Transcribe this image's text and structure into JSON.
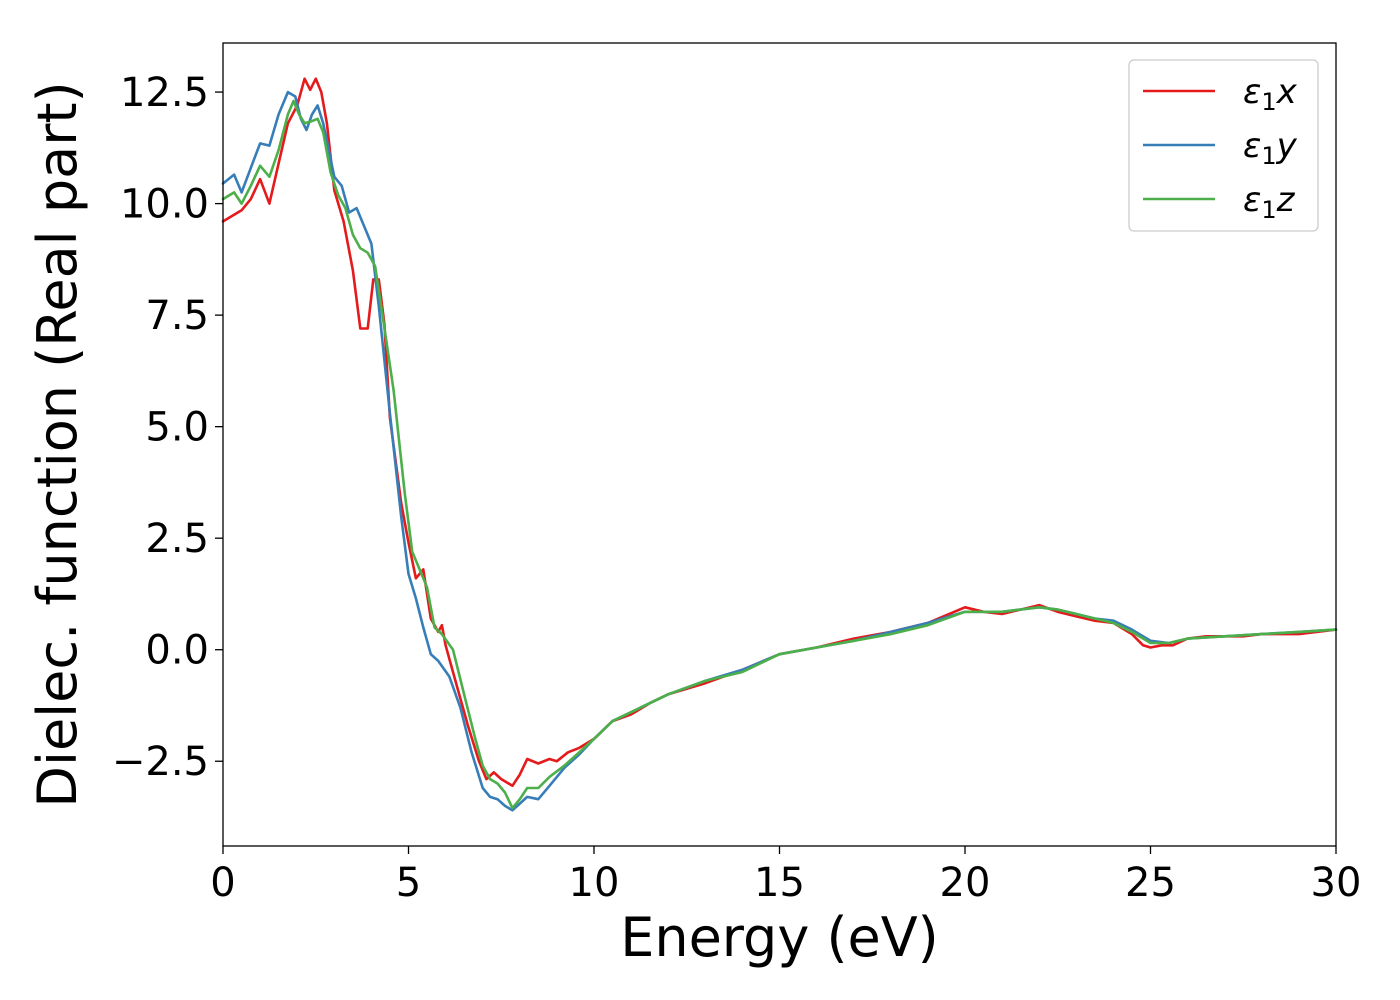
{
  "chart_data": {
    "type": "line",
    "title": "",
    "xlabel": "Energy (eV)",
    "ylabel": "Dielec. function (Real part)",
    "xlim": [
      0,
      30
    ],
    "ylim": [
      -4.4,
      13.6
    ],
    "xticks": [
      0,
      5,
      10,
      15,
      20,
      25,
      30
    ],
    "xtick_labels": [
      "0",
      "5",
      "10",
      "15",
      "20",
      "25",
      "30"
    ],
    "yticks": [
      -2.5,
      0.0,
      2.5,
      5.0,
      7.5,
      10.0,
      12.5
    ],
    "ytick_labels": [
      "−2.5",
      "0.0",
      "2.5",
      "5.0",
      "7.5",
      "10.0",
      "12.5"
    ],
    "grid": false,
    "legend_position": "top-right",
    "series": [
      {
        "name": "ε₁x",
        "legend_base": "ε",
        "legend_sub": "1",
        "legend_tail": "x",
        "color": "#e41a1c",
        "x": [
          0,
          0.5,
          0.75,
          1.0,
          1.25,
          1.5,
          1.75,
          2.0,
          2.2,
          2.35,
          2.5,
          2.65,
          2.8,
          3.0,
          3.25,
          3.5,
          3.7,
          3.9,
          4.05,
          4.2,
          4.35,
          4.5,
          4.8,
          5.0,
          5.2,
          5.4,
          5.6,
          5.8,
          5.9,
          6.0,
          6.3,
          6.6,
          6.9,
          7.1,
          7.3,
          7.5,
          7.8,
          8.0,
          8.2,
          8.5,
          8.8,
          9.0,
          9.3,
          9.6,
          10.0,
          10.5,
          11.0,
          11.5,
          12.0,
          13.0,
          14.0,
          15.0,
          16.0,
          17.0,
          18.0,
          19.0,
          20.0,
          20.5,
          21.0,
          21.5,
          22.0,
          22.5,
          23.0,
          23.5,
          24.0,
          24.5,
          24.8,
          25.0,
          25.3,
          25.6,
          26.0,
          26.5,
          27.0,
          27.5,
          28.0,
          29.0,
          30.0
        ],
        "y": [
          9.6,
          9.85,
          10.1,
          10.55,
          10.0,
          10.9,
          11.8,
          12.2,
          12.8,
          12.55,
          12.8,
          12.5,
          11.8,
          10.3,
          9.6,
          8.5,
          7.2,
          7.2,
          8.3,
          8.3,
          7.3,
          5.2,
          3.3,
          2.4,
          1.6,
          1.8,
          0.7,
          0.4,
          0.55,
          0.1,
          -0.8,
          -1.7,
          -2.5,
          -2.9,
          -2.75,
          -2.9,
          -3.05,
          -2.8,
          -2.45,
          -2.55,
          -2.45,
          -2.5,
          -2.3,
          -2.2,
          -2.0,
          -1.6,
          -1.45,
          -1.2,
          -1.0,
          -0.75,
          -0.45,
          -0.1,
          0.05,
          0.25,
          0.4,
          0.6,
          0.95,
          0.85,
          0.8,
          0.9,
          1.0,
          0.85,
          0.75,
          0.65,
          0.6,
          0.35,
          0.1,
          0.05,
          0.1,
          0.1,
          0.25,
          0.3,
          0.3,
          0.3,
          0.35,
          0.35,
          0.45
        ]
      },
      {
        "name": "ε₁y",
        "legend_base": "ε",
        "legend_sub": "1",
        "legend_tail": "y",
        "color": "#377eb8",
        "x": [
          0,
          0.3,
          0.5,
          0.75,
          1.0,
          1.25,
          1.5,
          1.75,
          1.95,
          2.1,
          2.25,
          2.4,
          2.55,
          2.7,
          3.0,
          3.2,
          3.4,
          3.6,
          3.8,
          4.0,
          4.2,
          4.5,
          4.8,
          5.0,
          5.2,
          5.4,
          5.6,
          5.8,
          6.1,
          6.4,
          6.7,
          7.0,
          7.2,
          7.4,
          7.6,
          7.8,
          8.0,
          8.2,
          8.5,
          8.8,
          9.2,
          9.6,
          10.0,
          10.5,
          11.0,
          11.5,
          12.0,
          13.0,
          14.0,
          15.0,
          16.0,
          17.0,
          18.0,
          19.0,
          20.0,
          21.0,
          22.0,
          22.5,
          23.0,
          23.5,
          24.0,
          24.5,
          25.0,
          25.5,
          26.0,
          27.0,
          28.0,
          29.0,
          30.0
        ],
        "y": [
          10.45,
          10.65,
          10.25,
          10.8,
          11.35,
          11.3,
          12.0,
          12.5,
          12.4,
          11.9,
          11.65,
          12.0,
          12.2,
          11.8,
          10.6,
          10.4,
          9.8,
          9.9,
          9.5,
          9.1,
          7.7,
          5.3,
          3.0,
          1.7,
          1.15,
          0.5,
          -0.1,
          -0.25,
          -0.6,
          -1.3,
          -2.3,
          -3.1,
          -3.3,
          -3.35,
          -3.5,
          -3.6,
          -3.45,
          -3.3,
          -3.35,
          -3.05,
          -2.65,
          -2.35,
          -2.0,
          -1.6,
          -1.4,
          -1.2,
          -1.0,
          -0.7,
          -0.45,
          -0.1,
          0.05,
          0.2,
          0.4,
          0.6,
          0.85,
          0.85,
          0.95,
          0.9,
          0.8,
          0.7,
          0.65,
          0.45,
          0.2,
          0.15,
          0.25,
          0.3,
          0.35,
          0.4,
          0.45
        ]
      },
      {
        "name": "ε₁z",
        "legend_base": "ε",
        "legend_sub": "1",
        "legend_tail": "z",
        "color": "#4daf4a",
        "x": [
          0,
          0.3,
          0.5,
          0.75,
          1.0,
          1.25,
          1.5,
          1.75,
          1.9,
          2.05,
          2.2,
          2.4,
          2.55,
          2.7,
          2.9,
          3.1,
          3.3,
          3.5,
          3.7,
          3.9,
          4.1,
          4.3,
          4.6,
          4.9,
          5.1,
          5.3,
          5.5,
          5.7,
          5.9,
          6.2,
          6.5,
          6.8,
          7.0,
          7.2,
          7.4,
          7.6,
          7.8,
          8.0,
          8.2,
          8.5,
          8.8,
          9.2,
          9.6,
          10.0,
          10.5,
          11.0,
          11.5,
          12.0,
          13.0,
          14.0,
          15.0,
          16.0,
          17.0,
          18.0,
          19.0,
          20.0,
          21.0,
          22.0,
          22.5,
          23.0,
          23.5,
          24.0,
          24.5,
          25.0,
          25.5,
          26.0,
          27.0,
          28.0,
          29.0,
          30.0
        ],
        "y": [
          10.1,
          10.25,
          10.0,
          10.4,
          10.85,
          10.6,
          11.2,
          12.0,
          12.3,
          12.0,
          11.8,
          11.85,
          11.9,
          11.6,
          10.7,
          10.2,
          9.9,
          9.3,
          9.0,
          8.9,
          8.6,
          7.5,
          5.8,
          3.5,
          2.2,
          1.8,
          1.4,
          0.5,
          0.35,
          0.0,
          -1.0,
          -2.0,
          -2.6,
          -2.9,
          -3.0,
          -3.2,
          -3.55,
          -3.35,
          -3.1,
          -3.1,
          -2.85,
          -2.6,
          -2.3,
          -2.0,
          -1.6,
          -1.4,
          -1.2,
          -1.0,
          -0.7,
          -0.5,
          -0.1,
          0.05,
          0.2,
          0.35,
          0.55,
          0.85,
          0.85,
          0.95,
          0.9,
          0.8,
          0.7,
          0.6,
          0.4,
          0.15,
          0.15,
          0.25,
          0.3,
          0.35,
          0.4,
          0.45
        ]
      }
    ]
  }
}
